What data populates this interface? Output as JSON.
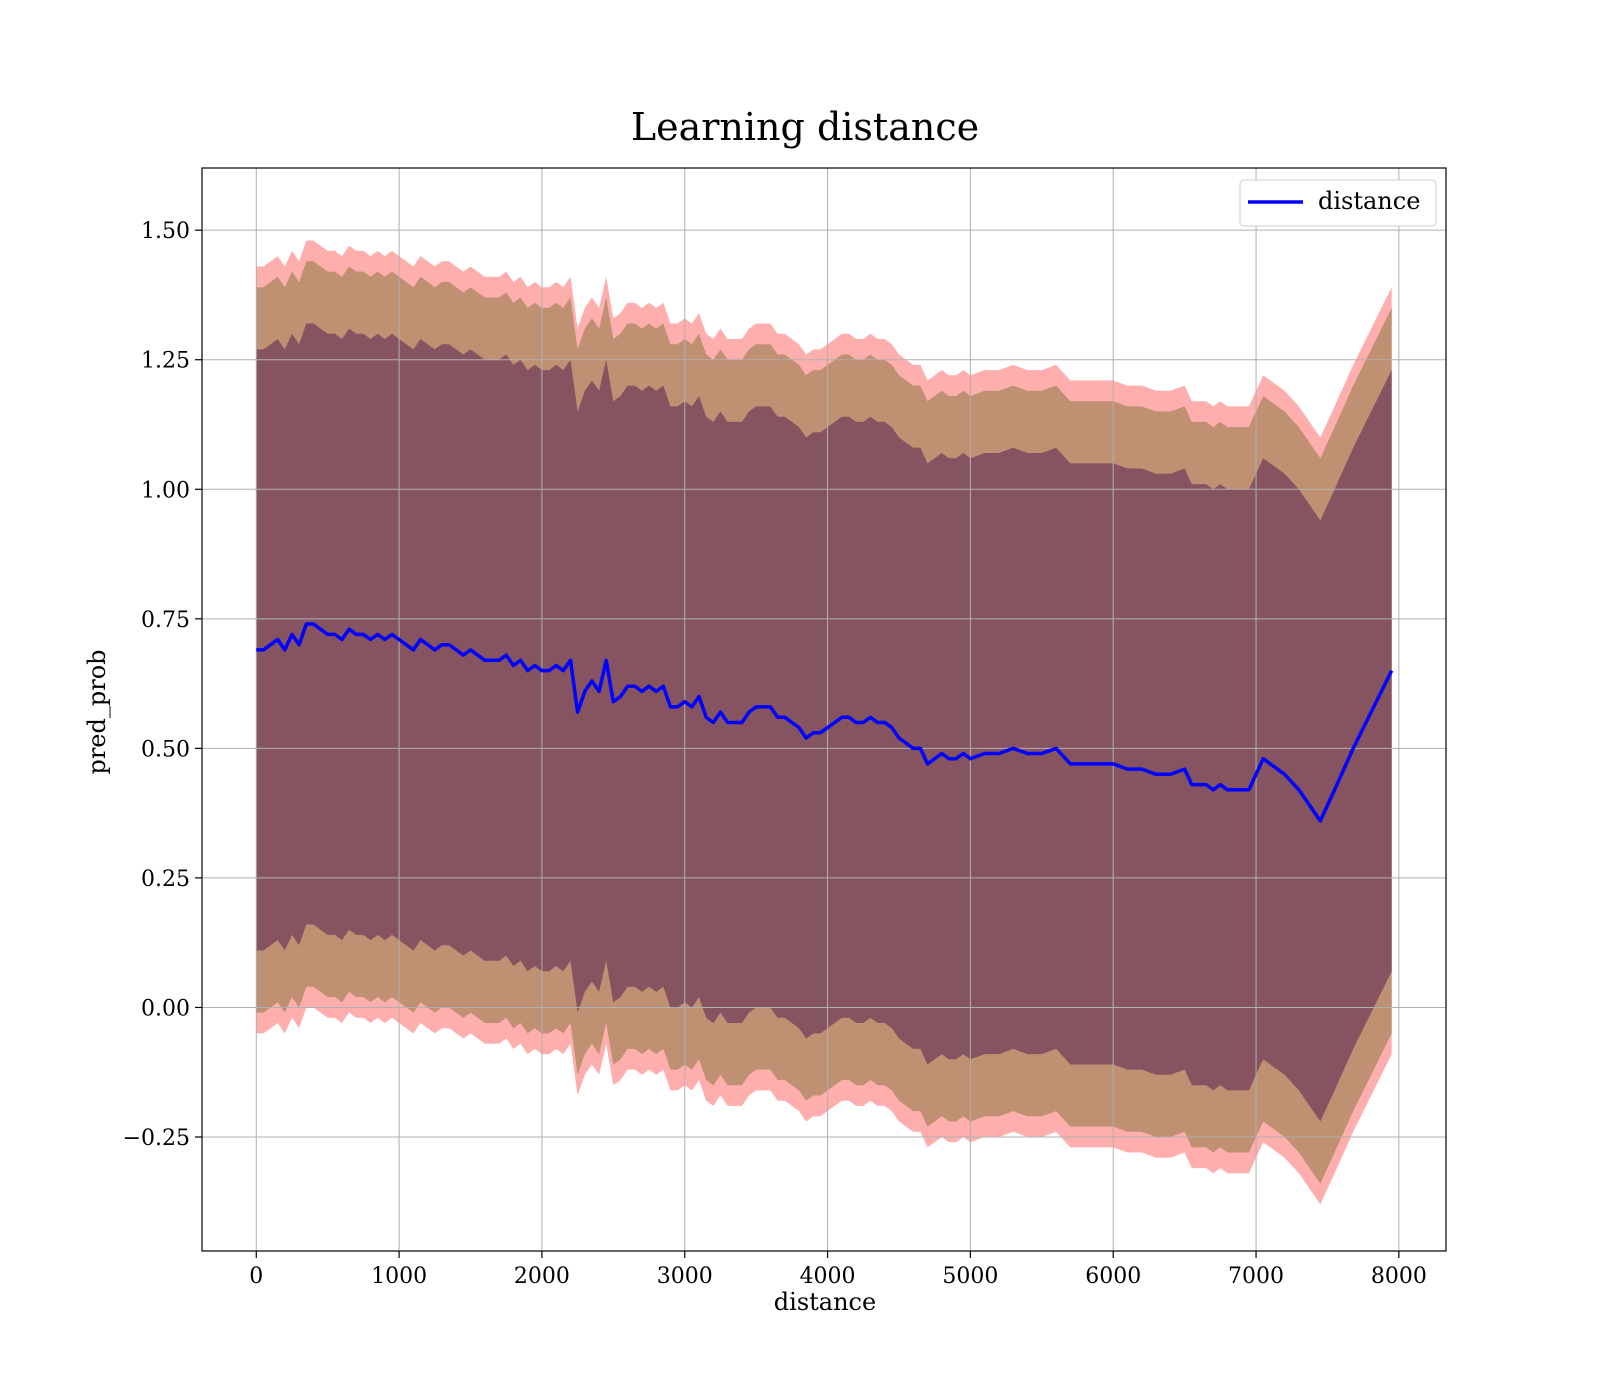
{
  "chart_data": {
    "type": "line",
    "title": "Learning distance",
    "xlabel": "distance",
    "ylabel": "pred_prob",
    "xlim": [
      -380,
      8330
    ],
    "ylim": [
      -0.47,
      1.62
    ],
    "xticks": [
      0,
      1000,
      2000,
      3000,
      4000,
      5000,
      6000,
      7000,
      8000
    ],
    "yticks": [
      -0.25,
      0.0,
      0.25,
      0.5,
      0.75,
      1.0,
      1.25,
      1.5
    ],
    "ytick_labels": [
      "−0.25",
      "0.00",
      "0.25",
      "0.50",
      "0.75",
      "1.00",
      "1.25",
      "1.50"
    ],
    "grid": true,
    "legend": {
      "position": "upper right",
      "entries": [
        "distance"
      ]
    },
    "colors": {
      "line": "#0000ff",
      "band_outer": "#ff6b6b",
      "band_middle": "#a9865c",
      "band_inner": "#6e3a5a",
      "grid": "#b0b0b0"
    },
    "series": [
      {
        "name": "distance",
        "x": [
          0,
          50,
          100,
          150,
          200,
          250,
          300,
          350,
          400,
          450,
          500,
          550,
          600,
          650,
          700,
          750,
          800,
          850,
          900,
          950,
          1000,
          1050,
          1100,
          1150,
          1200,
          1250,
          1300,
          1350,
          1400,
          1450,
          1500,
          1550,
          1600,
          1650,
          1700,
          1750,
          1800,
          1850,
          1900,
          1950,
          2000,
          2050,
          2100,
          2150,
          2200,
          2250,
          2300,
          2350,
          2400,
          2450,
          2500,
          2550,
          2600,
          2650,
          2700,
          2750,
          2800,
          2850,
          2900,
          2950,
          3000,
          3050,
          3100,
          3150,
          3200,
          3250,
          3300,
          3350,
          3400,
          3450,
          3500,
          3550,
          3600,
          3650,
          3700,
          3750,
          3800,
          3850,
          3900,
          3950,
          4000,
          4050,
          4100,
          4150,
          4200,
          4250,
          4300,
          4350,
          4400,
          4450,
          4500,
          4550,
          4600,
          4650,
          4700,
          4750,
          4800,
          4850,
          4900,
          4950,
          5000,
          5100,
          5200,
          5300,
          5400,
          5500,
          5600,
          5700,
          5800,
          5900,
          6000,
          6100,
          6200,
          6300,
          6400,
          6500,
          6550,
          6650,
          6700,
          6750,
          6800,
          6850,
          6950,
          7050,
          7100,
          7200,
          7300,
          7450,
          7550,
          7680,
          7950
        ],
        "y": [
          0.69,
          0.69,
          0.7,
          0.71,
          0.69,
          0.72,
          0.7,
          0.74,
          0.74,
          0.73,
          0.72,
          0.72,
          0.71,
          0.73,
          0.72,
          0.72,
          0.71,
          0.72,
          0.71,
          0.72,
          0.71,
          0.7,
          0.69,
          0.71,
          0.7,
          0.69,
          0.7,
          0.7,
          0.69,
          0.68,
          0.69,
          0.68,
          0.67,
          0.67,
          0.67,
          0.68,
          0.66,
          0.67,
          0.65,
          0.66,
          0.65,
          0.65,
          0.66,
          0.65,
          0.67,
          0.57,
          0.61,
          0.63,
          0.61,
          0.67,
          0.59,
          0.6,
          0.62,
          0.62,
          0.61,
          0.62,
          0.61,
          0.62,
          0.58,
          0.58,
          0.59,
          0.58,
          0.6,
          0.56,
          0.55,
          0.57,
          0.55,
          0.55,
          0.55,
          0.57,
          0.58,
          0.58,
          0.58,
          0.56,
          0.56,
          0.55,
          0.54,
          0.52,
          0.53,
          0.53,
          0.54,
          0.55,
          0.56,
          0.56,
          0.55,
          0.55,
          0.56,
          0.55,
          0.55,
          0.54,
          0.52,
          0.51,
          0.5,
          0.5,
          0.47,
          0.48,
          0.49,
          0.48,
          0.48,
          0.49,
          0.48,
          0.49,
          0.49,
          0.5,
          0.49,
          0.49,
          0.5,
          0.47,
          0.47,
          0.47,
          0.47,
          0.46,
          0.46,
          0.45,
          0.45,
          0.46,
          0.43,
          0.43,
          0.42,
          0.43,
          0.42,
          0.42,
          0.42,
          0.48,
          0.47,
          0.45,
          0.42,
          0.36,
          0.42,
          0.5,
          0.65
        ],
        "band_outer_halfwidth": [
          0.74,
          0.74,
          0.74,
          0.74,
          0.74,
          0.74,
          0.74,
          0.74,
          0.74,
          0.74,
          0.74,
          0.74,
          0.74,
          0.74,
          0.74,
          0.74,
          0.74,
          0.74,
          0.74,
          0.74,
          0.74,
          0.74,
          0.74,
          0.74,
          0.74,
          0.74,
          0.74,
          0.74,
          0.74,
          0.74,
          0.74,
          0.74,
          0.74,
          0.74,
          0.74,
          0.74,
          0.74,
          0.74,
          0.74,
          0.74,
          0.74,
          0.74,
          0.74,
          0.74,
          0.74,
          0.74,
          0.74,
          0.74,
          0.74,
          0.74,
          0.74,
          0.74,
          0.74,
          0.74,
          0.74,
          0.74,
          0.74,
          0.74,
          0.74,
          0.74,
          0.74,
          0.74,
          0.74,
          0.74,
          0.74,
          0.74,
          0.74,
          0.74,
          0.74,
          0.74,
          0.74,
          0.74,
          0.74,
          0.74,
          0.74,
          0.74,
          0.74,
          0.74,
          0.74,
          0.74,
          0.74,
          0.74,
          0.74,
          0.74,
          0.74,
          0.74,
          0.74,
          0.74,
          0.74,
          0.74,
          0.74,
          0.74,
          0.74,
          0.74,
          0.74,
          0.74,
          0.74,
          0.74,
          0.74,
          0.74,
          0.74,
          0.74,
          0.74,
          0.74,
          0.74,
          0.74,
          0.74,
          0.74,
          0.74,
          0.74,
          0.74,
          0.74,
          0.74,
          0.74,
          0.74,
          0.74,
          0.74,
          0.74,
          0.74,
          0.74,
          0.74,
          0.74,
          0.74,
          0.74,
          0.74,
          0.74,
          0.74,
          0.74,
          0.74,
          0.74,
          0.74
        ],
        "band_middle_halfwidth": [
          0.7,
          0.7,
          0.7,
          0.7,
          0.7,
          0.7,
          0.7,
          0.7,
          0.7,
          0.7,
          0.7,
          0.7,
          0.7,
          0.7,
          0.7,
          0.7,
          0.7,
          0.7,
          0.7,
          0.7,
          0.7,
          0.7,
          0.7,
          0.7,
          0.7,
          0.7,
          0.7,
          0.7,
          0.7,
          0.7,
          0.7,
          0.7,
          0.7,
          0.7,
          0.7,
          0.7,
          0.7,
          0.7,
          0.7,
          0.7,
          0.7,
          0.7,
          0.7,
          0.7,
          0.7,
          0.7,
          0.7,
          0.7,
          0.7,
          0.7,
          0.7,
          0.7,
          0.7,
          0.7,
          0.7,
          0.7,
          0.7,
          0.7,
          0.7,
          0.7,
          0.7,
          0.7,
          0.7,
          0.7,
          0.7,
          0.7,
          0.7,
          0.7,
          0.7,
          0.7,
          0.7,
          0.7,
          0.7,
          0.7,
          0.7,
          0.7,
          0.7,
          0.7,
          0.7,
          0.7,
          0.7,
          0.7,
          0.7,
          0.7,
          0.7,
          0.7,
          0.7,
          0.7,
          0.7,
          0.7,
          0.7,
          0.7,
          0.7,
          0.7,
          0.7,
          0.7,
          0.7,
          0.7,
          0.7,
          0.7,
          0.7,
          0.7,
          0.7,
          0.7,
          0.7,
          0.7,
          0.7,
          0.7,
          0.7,
          0.7,
          0.7,
          0.7,
          0.7,
          0.7,
          0.7,
          0.7,
          0.7,
          0.7,
          0.7,
          0.7,
          0.7,
          0.7,
          0.7,
          0.7,
          0.7,
          0.7,
          0.7,
          0.7,
          0.7,
          0.7,
          0.7
        ],
        "band_inner_halfwidth": [
          0.58,
          0.58,
          0.58,
          0.58,
          0.58,
          0.58,
          0.58,
          0.58,
          0.58,
          0.58,
          0.58,
          0.58,
          0.58,
          0.58,
          0.58,
          0.58,
          0.58,
          0.58,
          0.58,
          0.58,
          0.58,
          0.58,
          0.58,
          0.58,
          0.58,
          0.58,
          0.58,
          0.58,
          0.58,
          0.58,
          0.58,
          0.58,
          0.58,
          0.58,
          0.58,
          0.58,
          0.58,
          0.58,
          0.58,
          0.58,
          0.58,
          0.58,
          0.58,
          0.58,
          0.58,
          0.58,
          0.58,
          0.58,
          0.58,
          0.58,
          0.58,
          0.58,
          0.58,
          0.58,
          0.58,
          0.58,
          0.58,
          0.58,
          0.58,
          0.58,
          0.58,
          0.58,
          0.58,
          0.58,
          0.58,
          0.58,
          0.58,
          0.58,
          0.58,
          0.58,
          0.58,
          0.58,
          0.58,
          0.58,
          0.58,
          0.58,
          0.58,
          0.58,
          0.58,
          0.58,
          0.58,
          0.58,
          0.58,
          0.58,
          0.58,
          0.58,
          0.58,
          0.58,
          0.58,
          0.58,
          0.58,
          0.58,
          0.58,
          0.58,
          0.58,
          0.58,
          0.58,
          0.58,
          0.58,
          0.58,
          0.58,
          0.58,
          0.58,
          0.58,
          0.58,
          0.58,
          0.58,
          0.58,
          0.58,
          0.58,
          0.58,
          0.58,
          0.58,
          0.58,
          0.58,
          0.58,
          0.58,
          0.58,
          0.58,
          0.58,
          0.58,
          0.58,
          0.58,
          0.58,
          0.58,
          0.58,
          0.58,
          0.58,
          0.58,
          0.58,
          0.58
        ]
      }
    ]
  }
}
